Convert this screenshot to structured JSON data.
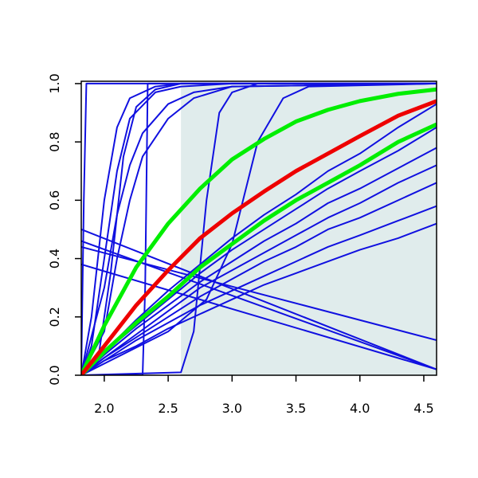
{
  "chart_data": {
    "type": "line",
    "xlim": [
      1.82,
      4.6
    ],
    "ylim": [
      0,
      1.008
    ],
    "xticks": [
      {
        "value": 2.0,
        "label": "2.0"
      },
      {
        "value": 2.5,
        "label": "2.5"
      },
      {
        "value": 3.0,
        "label": "3.0"
      },
      {
        "value": 3.5,
        "label": "3.5"
      },
      {
        "value": 4.0,
        "label": "4.0"
      },
      {
        "value": 4.5,
        "label": "4.5"
      }
    ],
    "yticks": [
      {
        "value": 0,
        "label": "0.0"
      },
      {
        "value": 0.2,
        "label": "0.2"
      },
      {
        "value": 0.4,
        "label": "0.4"
      },
      {
        "value": 0.6,
        "label": "0.6"
      },
      {
        "value": 0.8,
        "label": "0.8"
      },
      {
        "value": 1.0,
        "label": "1.0"
      }
    ],
    "shade": {
      "x": [
        2.6,
        4.6
      ],
      "y": [
        0,
        1
      ],
      "color": "#e0ecec"
    },
    "series": [
      {
        "color": "#1010e0",
        "width": 2,
        "x": [
          1.82,
          2.0,
          2.25,
          2.5,
          2.75,
          3.0,
          3.25,
          3.5,
          3.75,
          4.0,
          4.3,
          4.6
        ],
        "values": [
          0,
          0.08,
          0.19,
          0.29,
          0.38,
          0.47,
          0.55,
          0.62,
          0.7,
          0.76,
          0.85,
          0.93
        ]
      },
      {
        "color": "#1010e0",
        "width": 2,
        "x": [
          1.82,
          2.0,
          2.25,
          2.5,
          2.75,
          3.0,
          3.25,
          3.5,
          3.75,
          4.0,
          4.3,
          4.6
        ],
        "values": [
          0,
          0.08,
          0.17,
          0.26,
          0.35,
          0.43,
          0.5,
          0.57,
          0.64,
          0.7,
          0.77,
          0.85
        ]
      },
      {
        "color": "#1010e0",
        "width": 2,
        "x": [
          1.82,
          2.0,
          2.25,
          2.5,
          2.75,
          3.0,
          3.25,
          3.5,
          3.75,
          4.0,
          4.3,
          4.6
        ],
        "values": [
          0,
          0.07,
          0.16,
          0.24,
          0.32,
          0.39,
          0.46,
          0.52,
          0.59,
          0.64,
          0.71,
          0.78
        ]
      },
      {
        "color": "#1010e0",
        "width": 2,
        "x": [
          1.82,
          2.0,
          2.25,
          2.5,
          2.75,
          3.0,
          3.25,
          3.5,
          3.75,
          4.0,
          4.3,
          4.6
        ],
        "values": [
          0,
          0.06,
          0.14,
          0.22,
          0.3,
          0.36,
          0.42,
          0.48,
          0.54,
          0.59,
          0.66,
          0.72
        ]
      },
      {
        "color": "#1010e0",
        "width": 2,
        "x": [
          1.82,
          2.0,
          2.25,
          2.5,
          2.75,
          3.0,
          3.25,
          3.5,
          3.75,
          4.0,
          4.3,
          4.6
        ],
        "values": [
          0,
          0.06,
          0.13,
          0.2,
          0.27,
          0.33,
          0.39,
          0.44,
          0.5,
          0.54,
          0.6,
          0.66
        ]
      },
      {
        "color": "#1010e0",
        "width": 2,
        "x": [
          1.82,
          2.0,
          2.25,
          2.5,
          2.75,
          3.0,
          3.25,
          3.5,
          3.75,
          4.0,
          4.3,
          4.6
        ],
        "values": [
          0,
          0.05,
          0.12,
          0.18,
          0.24,
          0.29,
          0.34,
          0.39,
          0.44,
          0.48,
          0.53,
          0.58
        ]
      },
      {
        "color": "#1010e0",
        "width": 2,
        "x": [
          1.82,
          2.0,
          2.25,
          2.5,
          2.75,
          3.0,
          3.25,
          3.5,
          3.75,
          4.0,
          4.3,
          4.6
        ],
        "values": [
          0,
          0.05,
          0.1,
          0.16,
          0.21,
          0.26,
          0.31,
          0.35,
          0.39,
          0.43,
          0.47,
          0.52
        ]
      },
      {
        "color": "#1010e0",
        "width": 2,
        "x": [
          1.82,
          4.6
        ],
        "values": [
          0.5,
          0.02
        ]
      },
      {
        "color": "#1010e0",
        "width": 2,
        "x": [
          1.82,
          4.6
        ],
        "values": [
          0.46,
          0.02
        ]
      },
      {
        "color": "#1010e0",
        "width": 2,
        "x": [
          1.82,
          4.6
        ],
        "values": [
          0.38,
          0.02
        ]
      },
      {
        "color": "#1010e0",
        "width": 2,
        "x": [
          1.82,
          4.6
        ],
        "values": [
          0.44,
          0.12
        ]
      },
      {
        "color": "#1010e0",
        "width": 2,
        "x": [
          1.82,
          1.84,
          1.86,
          4.6
        ],
        "values": [
          0,
          0.6,
          1,
          1
        ]
      },
      {
        "color": "#1010e0",
        "width": 2,
        "x": [
          1.82,
          1.9,
          2.0,
          2.1,
          2.2,
          2.4,
          2.6,
          3.0,
          4.6
        ],
        "values": [
          0,
          0.2,
          0.6,
          0.85,
          0.95,
          0.99,
          1,
          1,
          1
        ]
      },
      {
        "color": "#1010e0",
        "width": 2,
        "x": [
          1.82,
          1.9,
          2.0,
          2.1,
          2.2,
          2.4,
          2.6,
          3.0,
          4.6
        ],
        "values": [
          0,
          0.1,
          0.4,
          0.7,
          0.88,
          0.97,
          0.99,
          1,
          1
        ]
      },
      {
        "color": "#1010e0",
        "width": 2,
        "x": [
          1.82,
          1.95,
          2.05,
          2.15,
          2.25,
          2.4,
          2.6,
          3.0,
          4.6
        ],
        "values": [
          0,
          0.05,
          0.35,
          0.75,
          0.92,
          0.98,
          1,
          1,
          1
        ]
      },
      {
        "color": "#1010e0",
        "width": 2,
        "x": [
          1.82,
          2.0,
          2.1,
          2.2,
          2.3,
          2.5,
          2.7,
          3.0,
          4.6
        ],
        "values": [
          0,
          0.3,
          0.55,
          0.72,
          0.83,
          0.93,
          0.97,
          0.99,
          1
        ]
      },
      {
        "color": "#1010e0",
        "width": 2,
        "x": [
          1.82,
          2.0,
          2.1,
          2.2,
          2.3,
          2.5,
          2.7,
          3.0,
          4.6
        ],
        "values": [
          0,
          0.15,
          0.4,
          0.6,
          0.75,
          0.88,
          0.95,
          0.99,
          1
        ]
      },
      {
        "color": "#1010e0",
        "width": 2,
        "x": [
          1.82,
          2.3,
          2.32,
          2.34,
          4.6
        ],
        "values": [
          0,
          0,
          0.3,
          1,
          1
        ]
      },
      {
        "color": "#1010e0",
        "width": 2,
        "x": [
          1.82,
          2.6,
          2.7,
          2.8,
          2.9,
          3.0,
          3.2,
          4.6
        ],
        "values": [
          0,
          0.01,
          0.15,
          0.6,
          0.9,
          0.97,
          1,
          1
        ]
      },
      {
        "color": "#1010e0",
        "width": 2,
        "x": [
          1.82,
          2.5,
          2.8,
          3.0,
          3.2,
          3.4,
          3.6,
          4.6
        ],
        "values": [
          0,
          0.15,
          0.26,
          0.45,
          0.8,
          0.95,
          0.99,
          1
        ]
      },
      {
        "color": "#00ee00",
        "width": 5,
        "x": [
          1.82,
          2.0,
          2.25,
          2.5,
          2.75,
          3.0,
          3.25,
          3.5,
          3.75,
          4.0,
          4.3,
          4.6
        ],
        "values": [
          0,
          0.17,
          0.37,
          0.52,
          0.64,
          0.74,
          0.81,
          0.87,
          0.91,
          0.94,
          0.965,
          0.98
        ]
      },
      {
        "color": "#00ee00",
        "width": 5,
        "x": [
          1.82,
          2.0,
          2.25,
          2.5,
          2.75,
          3.0,
          3.25,
          3.5,
          3.75,
          4.0,
          4.3,
          4.6
        ],
        "values": [
          0,
          0.08,
          0.18,
          0.27,
          0.37,
          0.45,
          0.53,
          0.6,
          0.66,
          0.72,
          0.8,
          0.86
        ]
      },
      {
        "color": "#ee0000",
        "width": 5,
        "x": [
          1.82,
          2.0,
          2.25,
          2.5,
          2.75,
          3.0,
          3.25,
          3.5,
          3.75,
          4.0,
          4.3,
          4.6
        ],
        "values": [
          0,
          0.1,
          0.24,
          0.36,
          0.47,
          0.555,
          0.63,
          0.7,
          0.76,
          0.82,
          0.89,
          0.94
        ]
      }
    ]
  }
}
